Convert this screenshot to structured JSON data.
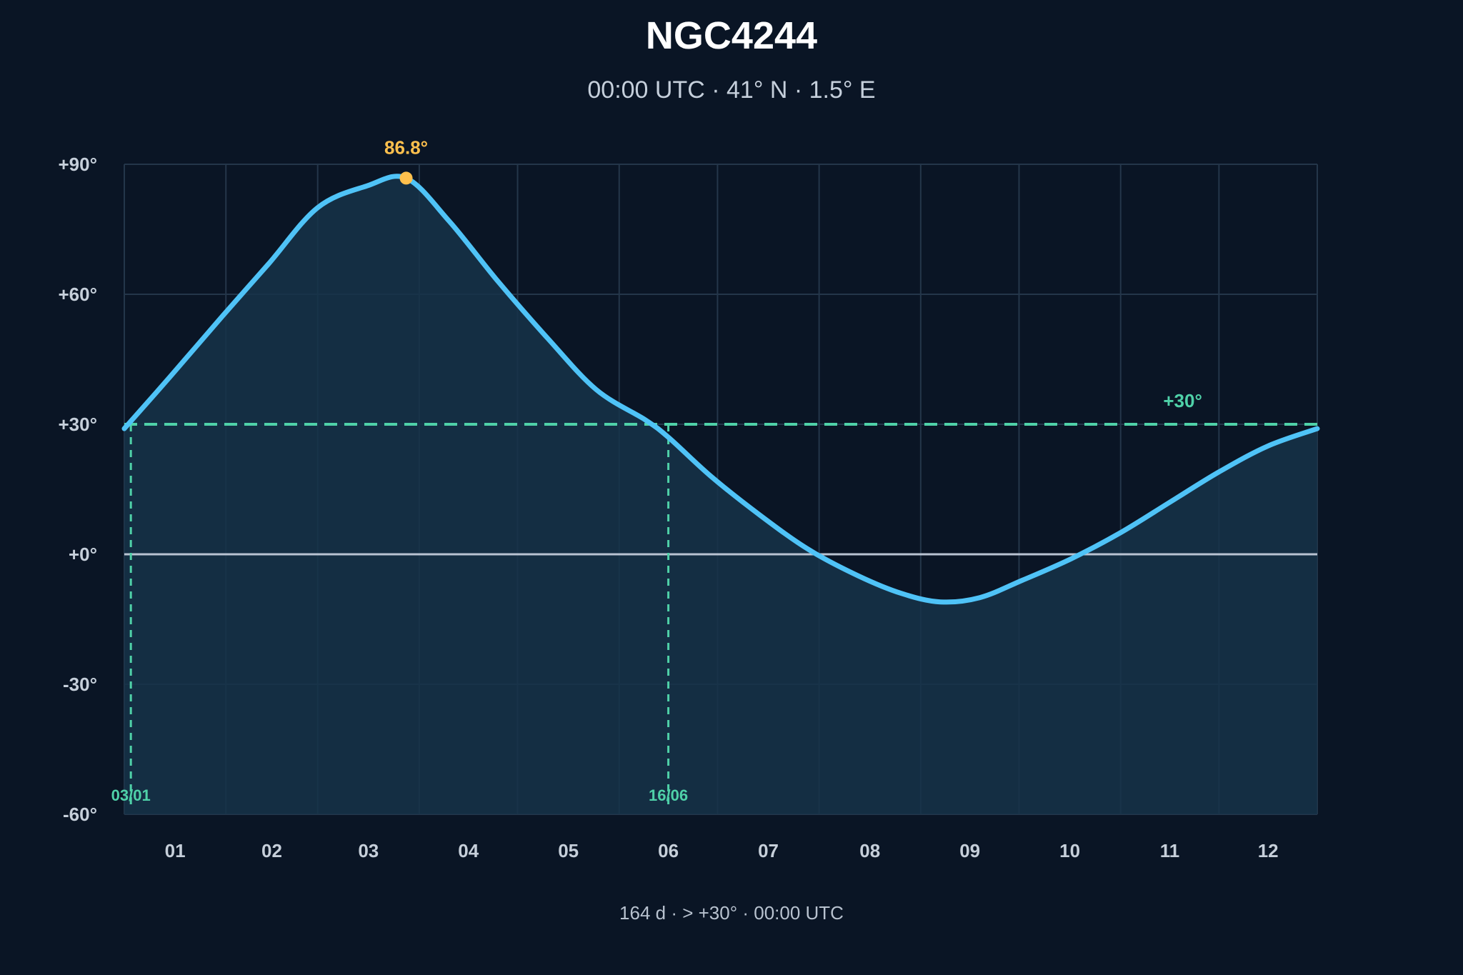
{
  "chart_data": {
    "type": "line",
    "title": "NGC4244",
    "subtitle": "00:00 UTC · 41° N · 1.5° E",
    "footer": "164 d · > +30° · 00:00 UTC",
    "ylim": [
      -60,
      90
    ],
    "y_ticks": [
      90,
      60,
      30,
      0,
      -30,
      -60
    ],
    "y_tick_labels": [
      "+90°",
      "+60°",
      "+30°",
      "+0°",
      "-30°",
      "-60°"
    ],
    "x_range_days": [
      1,
      365
    ],
    "month_labels": [
      "01",
      "02",
      "03",
      "04",
      "05",
      "06",
      "07",
      "08",
      "09",
      "10",
      "11",
      "12"
    ],
    "grid": true,
    "series": [
      {
        "x": [
          1,
          15,
          31,
          45,
          60,
          75,
          87,
          100,
          115,
          130,
          145,
          160,
          167,
          180,
          195,
          210,
          225,
          238,
          250,
          262,
          275,
          290,
          305,
          320,
          335,
          350,
          365
        ],
        "values": [
          29,
          41,
          55,
          67,
          80,
          85,
          86.8,
          77,
          63,
          50,
          38,
          31,
          27,
          18,
          9,
          1,
          -5,
          -9,
          -11,
          -10,
          -6,
          -1,
          5,
          12,
          19,
          25,
          29
        ]
      }
    ],
    "peak": {
      "x": 87,
      "value": 86.8,
      "label": "86.8°"
    },
    "threshold": {
      "value": 30,
      "label": "+30°"
    },
    "crossings": [
      {
        "x": 3,
        "label": "03/01"
      },
      {
        "x": 167,
        "label": "16/06"
      }
    ],
    "colors": {
      "background": "#0a1525",
      "line": "#4fc3f7",
      "fill": "#163249",
      "peak": "#ffc04d",
      "threshold": "#4fd1a8",
      "zero_line": "#b9c3d2",
      "grid": "#24364a",
      "tick": "#c6cfda"
    }
  }
}
